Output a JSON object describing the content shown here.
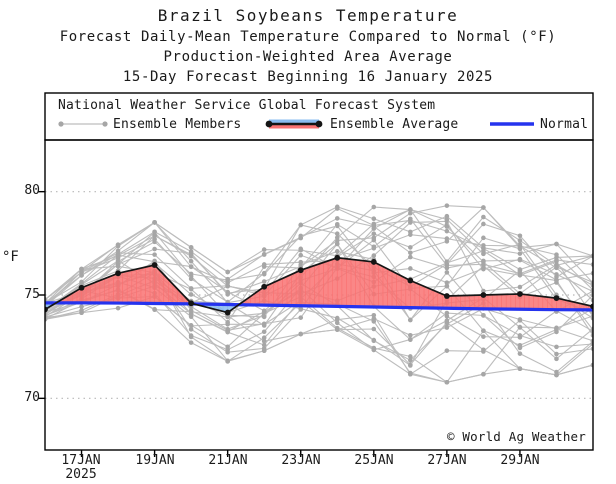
{
  "header": {
    "title": "Brazil Soybeans Temperature",
    "subtitle1": "Forecast Daily-Mean Temperature Compared to Normal (°F)",
    "subtitle2": "Production-Weighted Area Average",
    "subtitle3": "15-Day Forecast Beginning 16 January 2025"
  },
  "legend": {
    "source": "National Weather Service Global Forecast System",
    "items": [
      {
        "label": "Ensemble Members"
      },
      {
        "label": "Ensemble Average"
      },
      {
        "label": "Normal"
      }
    ]
  },
  "footer_note": "© World Ag Weather",
  "colors": {
    "background": "#ffffff",
    "frame": "#000000",
    "text": "#1a1a1a",
    "gridline": "#b8b8b8",
    "ensemble_member_line": "#bdbdbd",
    "ensemble_member_dot": "#a6a6a6",
    "ensemble_average_line": "#151515",
    "above_normal_fill": "#f97272",
    "below_normal_fill": "#8abcf0",
    "normal_line": "#2533ee"
  },
  "chart_data": {
    "type": "line",
    "title": "Brazil Soybeans Temperature",
    "xlabel": "",
    "ylabel": "°F",
    "ylim": [
      67.5,
      82.5
    ],
    "yticks": [
      80,
      75,
      70
    ],
    "grid": "dotted horizontal at yticks",
    "legend_position": "top box inside frame",
    "x_days": [
      16,
      17,
      18,
      19,
      20,
      21,
      22,
      23,
      24,
      25,
      26,
      27,
      28,
      29,
      30,
      31
    ],
    "xtick_days": [
      17,
      19,
      21,
      23,
      25,
      27,
      29
    ],
    "xtick_labels": [
      "17JAN",
      "19JAN",
      "21JAN",
      "23JAN",
      "25JAN",
      "27JAN",
      "29JAN"
    ],
    "year_label": "2025",
    "series": [
      {
        "name": "Ensemble Average",
        "values": [
          74.3,
          75.35,
          76.05,
          76.45,
          74.6,
          74.15,
          75.4,
          76.2,
          76.8,
          76.6,
          75.7,
          74.95,
          75.0,
          75.05,
          74.85,
          74.45
        ]
      },
      {
        "name": "Normal",
        "values": [
          74.62,
          74.62,
          74.61,
          74.59,
          74.57,
          74.54,
          74.51,
          74.48,
          74.45,
          74.42,
          74.39,
          74.36,
          74.33,
          74.31,
          74.29,
          74.28
        ]
      }
    ],
    "shading": {
      "above_normal": "red fill between Ensemble Average and Normal where average > normal",
      "below_normal": "light blue fill between Ensemble Average and Normal where average < normal"
    },
    "ensemble": {
      "name": "Ensemble Members",
      "count": 30,
      "min": [
        73.8,
        74.1,
        74.3,
        74.2,
        72.6,
        71.7,
        72.2,
        73.0,
        73.2,
        72.2,
        71.0,
        70.6,
        71.0,
        71.3,
        71.0,
        71.5
      ],
      "max": [
        74.8,
        76.3,
        77.5,
        78.6,
        77.4,
        76.2,
        77.3,
        78.5,
        79.4,
        79.4,
        79.3,
        79.5,
        79.4,
        78.0,
        77.6,
        77.0
      ]
    }
  }
}
